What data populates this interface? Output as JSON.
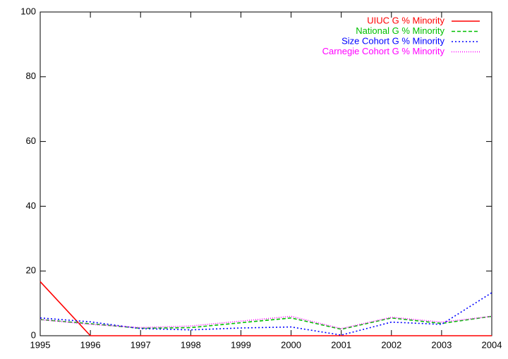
{
  "chart_data": {
    "type": "line",
    "x": [
      1995,
      1996,
      1997,
      1998,
      1999,
      2000,
      2001,
      2002,
      2003,
      2004
    ],
    "series": [
      {
        "name": "UIUC G % Minority",
        "color": "#ff0000",
        "values": [
          16.7,
          0,
          0,
          0,
          0,
          0,
          0,
          0,
          0,
          0
        ]
      },
      {
        "name": "National G % Minority",
        "color": "#00c000",
        "values": [
          5.0,
          3.7,
          2.3,
          2.5,
          4.0,
          5.5,
          2.0,
          5.5,
          3.8,
          6.0
        ]
      },
      {
        "name": "Size Cohort G % Minority",
        "color": "#0000ff",
        "values": [
          5.5,
          4.3,
          2.2,
          1.8,
          2.4,
          2.7,
          0.2,
          4.2,
          3.5,
          13.3
        ]
      },
      {
        "name": "Carnegie Cohort G % Minority",
        "color": "#ff00ff",
        "values": [
          5.0,
          3.5,
          2.5,
          3.0,
          4.5,
          6.0,
          2.2,
          5.7,
          4.2,
          6.0
        ]
      }
    ],
    "xlim": [
      1995,
      2004
    ],
    "xticks": [
      1995,
      1996,
      1997,
      1998,
      1999,
      2000,
      2001,
      2002,
      2003,
      2004
    ],
    "ylim": [
      0,
      100
    ],
    "yticks": [
      0,
      20,
      40,
      60,
      80,
      100
    ],
    "legend": "top-right",
    "grid": false
  }
}
